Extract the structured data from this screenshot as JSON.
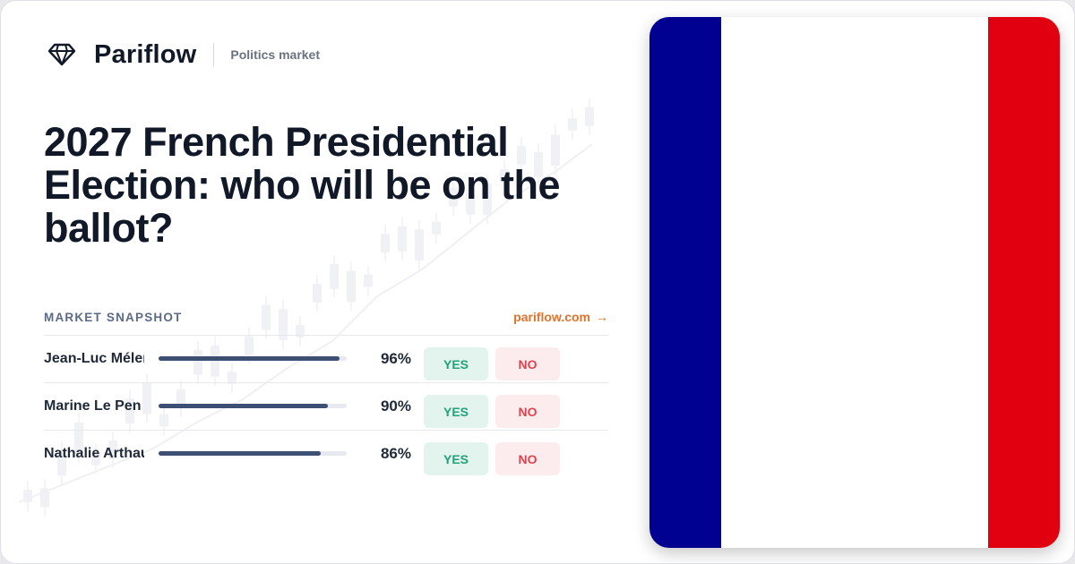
{
  "brand": {
    "name": "Pariflow",
    "tagline": "Politics market",
    "icon": "diamond-icon"
  },
  "title": "2027 French Presidential Election: who will be on the ballot?",
  "snapshot": {
    "label": "MARKET SNAPSHOT",
    "link_text": "pariflow.com",
    "link_arrow": "→"
  },
  "rows": [
    {
      "name": "Jean-Luc Mélenchon",
      "percent_label": "96%",
      "percent": 96,
      "yes_label": "YES",
      "no_label": "NO"
    },
    {
      "name": "Marine Le Pen",
      "percent_label": "90%",
      "percent": 90,
      "yes_label": "YES",
      "no_label": "NO"
    },
    {
      "name": "Nathalie Arthaud",
      "percent_label": "86%",
      "percent": 86,
      "yes_label": "YES",
      "no_label": "NO"
    }
  ],
  "flag": {
    "country": "France",
    "colors": [
      "#000091",
      "#ffffff",
      "#e1000f"
    ]
  },
  "colors": {
    "accent_link": "#e0732b",
    "yes_text": "#21a27a",
    "yes_bg": "#e3f4ee",
    "no_text": "#e04350",
    "no_bg": "#fdecee",
    "bar": "#3d4f72"
  }
}
